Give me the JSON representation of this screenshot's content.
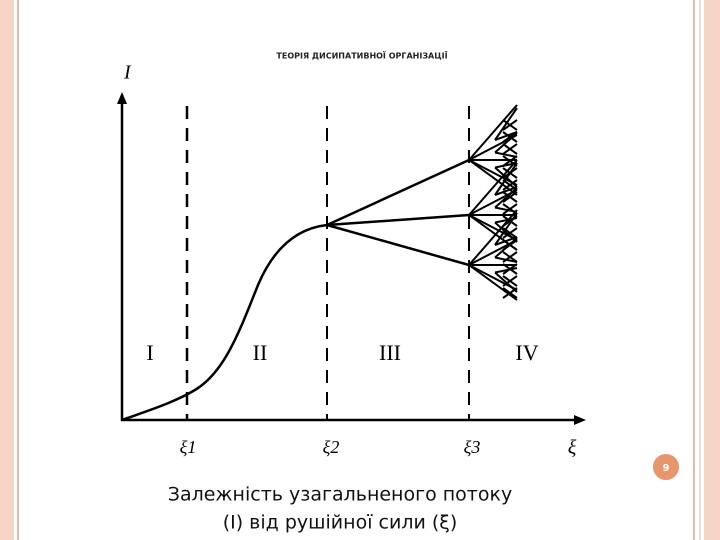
{
  "header": {
    "title": "ТЕОРІЯ ДИСИПАТИВНОЇ ОРГАНІЗАЦІЇ"
  },
  "diagram": {
    "y_axis_label": "I",
    "x_axis_label": "ξ",
    "markers": [
      "ξ1",
      "ξ2",
      "ξ3"
    ],
    "regions": [
      "I",
      "II",
      "III",
      "IV"
    ]
  },
  "caption": [
    "Залежність узагальненого потоку",
    "(I) від рушійної сили (ξ)"
  ],
  "page_number": "9"
}
